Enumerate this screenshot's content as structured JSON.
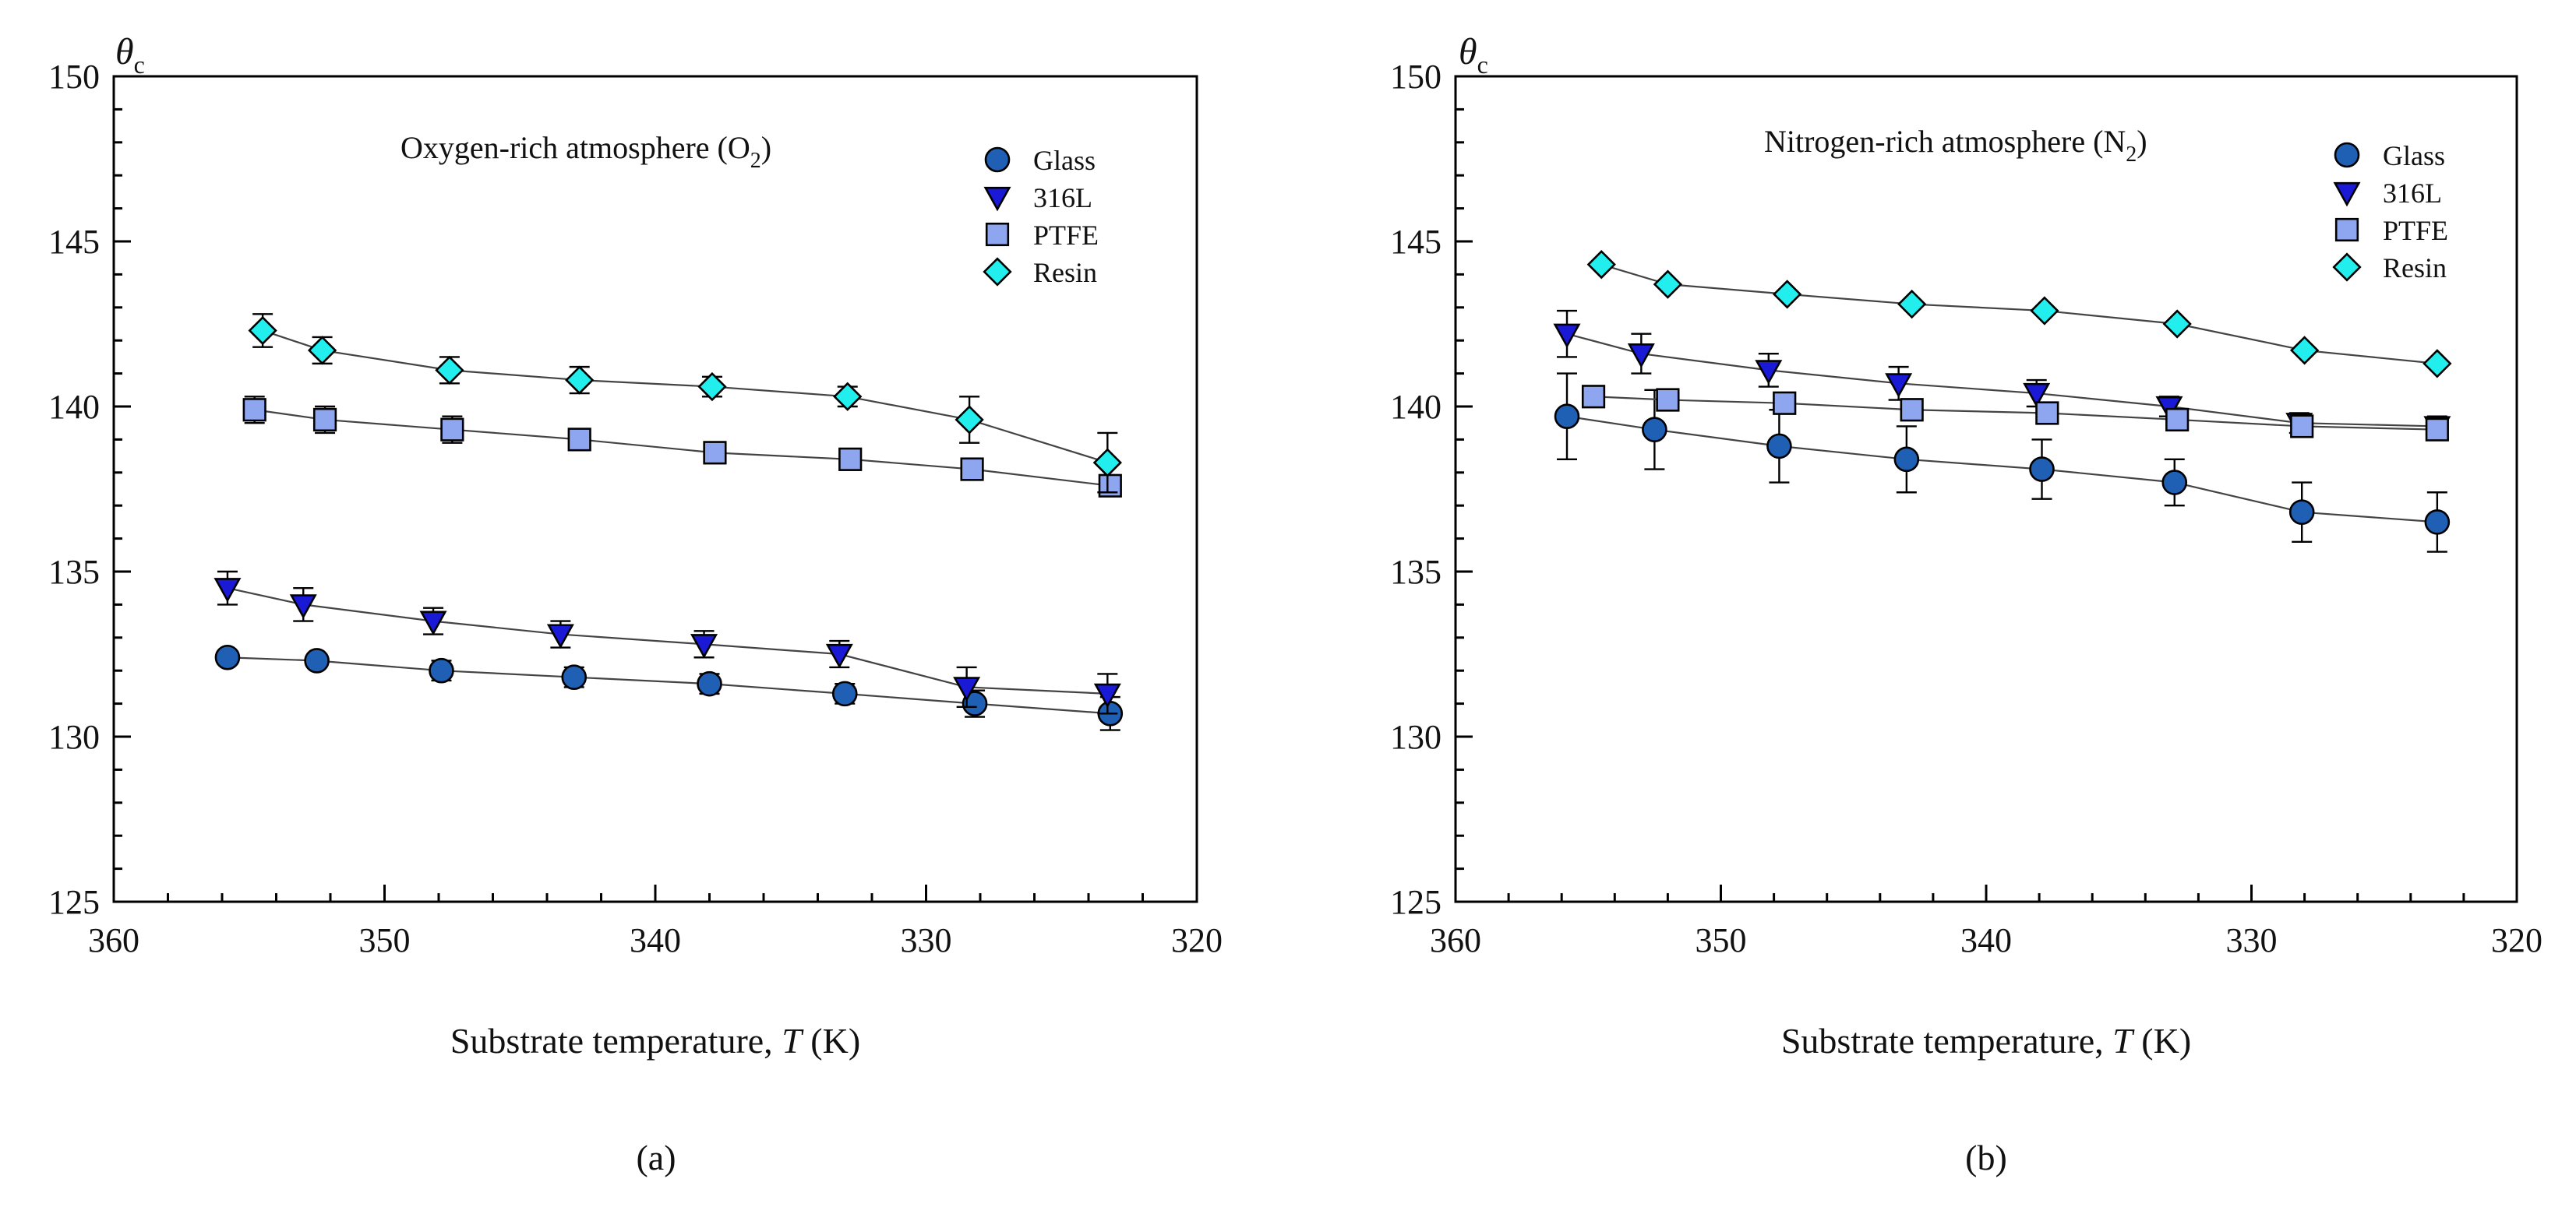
{
  "colors": {
    "Glass": "#1f5fb4",
    "316L": "#1a1ad6",
    "PTFE": "#8ea6f0",
    "Resin": "#22eeee"
  },
  "chart_data": [
    {
      "type": "scatter",
      "panel_label": "(a)",
      "annotation": {
        "prefix": "Oxygen-rich atmosphere (O",
        "subscript": "2",
        "suffix": ")"
      },
      "ylabel": {
        "symbol": "θ",
        "subscript": "c"
      },
      "xlabel": {
        "prefix": "Substrate temperature, ",
        "var": "T",
        "suffix": " (K)"
      },
      "xlim": [
        360,
        320
      ],
      "ylim": [
        125,
        150
      ],
      "xticks": [
        360,
        350,
        340,
        330,
        320
      ],
      "yticks": [
        125,
        130,
        135,
        140,
        145,
        150
      ],
      "legend_position": "top-right",
      "series": [
        {
          "name": "Glass",
          "marker": "circle",
          "x": [
            355.8,
            352.5,
            347.9,
            343.0,
            338.0,
            333.0,
            328.2,
            323.2
          ],
          "y": [
            132.4,
            132.3,
            132.0,
            131.8,
            131.6,
            131.3,
            131.0,
            130.7
          ],
          "err": [
            0.2,
            0.2,
            0.3,
            0.3,
            0.3,
            0.3,
            0.4,
            0.5
          ]
        },
        {
          "name": "316L",
          "marker": "triangle-down",
          "x": [
            355.8,
            353.0,
            348.2,
            343.5,
            338.2,
            333.2,
            328.5,
            323.3
          ],
          "y": [
            134.5,
            134.0,
            133.5,
            133.1,
            132.8,
            132.5,
            131.5,
            131.3
          ],
          "err": [
            0.5,
            0.5,
            0.4,
            0.4,
            0.4,
            0.4,
            0.6,
            0.6
          ]
        },
        {
          "name": "PTFE",
          "marker": "square",
          "x": [
            354.8,
            352.2,
            347.5,
            342.8,
            337.8,
            332.8,
            328.3,
            323.2
          ],
          "y": [
            139.9,
            139.6,
            139.3,
            139.0,
            138.6,
            138.4,
            138.1,
            137.6
          ],
          "err": [
            0.4,
            0.4,
            0.4,
            0.3,
            0.2,
            0.2,
            0.2,
            0.2
          ]
        },
        {
          "name": "Resin",
          "marker": "diamond",
          "x": [
            354.5,
            352.3,
            347.6,
            342.8,
            337.9,
            332.9,
            328.4,
            323.3
          ],
          "y": [
            142.3,
            141.7,
            141.1,
            140.8,
            140.6,
            140.3,
            139.6,
            138.3
          ],
          "err": [
            0.5,
            0.4,
            0.4,
            0.4,
            0.3,
            0.3,
            0.7,
            0.9
          ]
        }
      ]
    },
    {
      "type": "scatter",
      "panel_label": "(b)",
      "annotation": {
        "prefix": "Nitrogen-rich atmosphere (N",
        "subscript": "2",
        "suffix": ")"
      },
      "ylabel": {
        "symbol": "θ",
        "subscript": "c"
      },
      "xlabel": {
        "prefix": "Substrate temperature, ",
        "var": "T",
        "suffix": " (K)"
      },
      "xlim": [
        360,
        320
      ],
      "ylim": [
        125,
        150
      ],
      "xticks": [
        360,
        350,
        340,
        330,
        320
      ],
      "yticks": [
        125,
        130,
        135,
        140,
        145,
        150
      ],
      "legend_position": "top-right",
      "series": [
        {
          "name": "Glass",
          "marker": "circle",
          "x": [
            355.8,
            352.5,
            347.8,
            343.0,
            337.9,
            332.9,
            328.1,
            323.0
          ],
          "y": [
            139.7,
            139.3,
            138.8,
            138.4,
            138.1,
            137.7,
            136.8,
            136.5
          ],
          "err": [
            1.3,
            1.2,
            1.1,
            1.0,
            0.9,
            0.7,
            0.9,
            0.9
          ]
        },
        {
          "name": "316L",
          "marker": "triangle-down",
          "x": [
            355.8,
            353.0,
            348.2,
            343.3,
            338.1,
            333.1,
            328.2,
            323.0
          ],
          "y": [
            142.2,
            141.6,
            141.1,
            140.7,
            140.4,
            140.0,
            139.5,
            139.4
          ],
          "err": [
            0.7,
            0.6,
            0.5,
            0.5,
            0.4,
            0.3,
            0.3,
            0.3
          ]
        },
        {
          "name": "PTFE",
          "marker": "square",
          "x": [
            354.8,
            352.0,
            347.6,
            342.8,
            337.7,
            332.8,
            328.1,
            323.0
          ],
          "y": [
            140.3,
            140.2,
            140.1,
            139.9,
            139.8,
            139.6,
            139.4,
            139.3
          ],
          "err": [
            0.1,
            0.1,
            0.1,
            0.1,
            0.1,
            0.1,
            0.1,
            0.1
          ]
        },
        {
          "name": "Resin",
          "marker": "diamond",
          "x": [
            354.5,
            352.0,
            347.5,
            342.8,
            337.8,
            332.8,
            328.0,
            323.0
          ],
          "y": [
            144.3,
            143.7,
            143.4,
            143.1,
            142.9,
            142.5,
            141.7,
            141.3
          ],
          "err": [
            0.1,
            0.1,
            0.1,
            0.1,
            0.1,
            0.1,
            0.1,
            0.1
          ]
        }
      ]
    }
  ]
}
